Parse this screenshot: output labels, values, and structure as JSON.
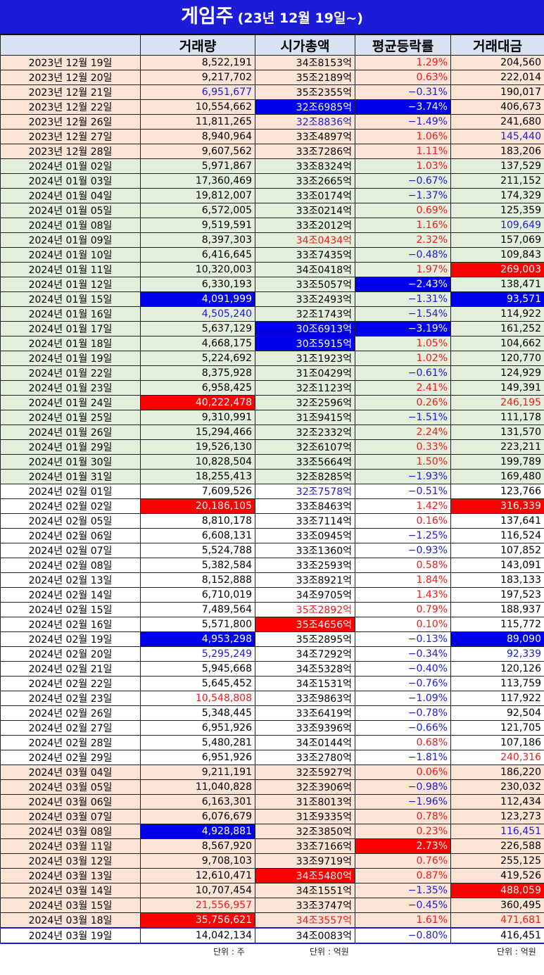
{
  "title": "게임주",
  "subtitle": "(23년 12월 19일~)",
  "columns": [
    "",
    "거래량",
    "시가총액",
    "평균등락률",
    "거래대금"
  ],
  "rows": [
    {
      "d": "2023년 12월 19일",
      "v": "8,522,191",
      "m": "34조8153억",
      "r": "1.29%",
      "a": "204,560",
      "bg": "peach",
      "rc": "red"
    },
    {
      "d": "2023년 12월 20일",
      "v": "9,217,702",
      "m": "35조2189억",
      "r": "0.63%",
      "a": "222,014",
      "bg": "peach",
      "rc": "red"
    },
    {
      "d": "2023년 12월 21일",
      "v": "6,951,677",
      "m": "35조2355억",
      "r": "-0.31%",
      "a": "190,017",
      "bg": "peach",
      "vc": "blue",
      "rc": "blue"
    },
    {
      "d": "2023년 12월 22일",
      "v": "10,554,662",
      "m": "32조6985억",
      "r": "-3.74%",
      "a": "406,673",
      "bg": "peach",
      "mc": "bgblue",
      "rc": "bgblue"
    },
    {
      "d": "2023년 12월 26일",
      "v": "11,811,265",
      "m": "32조8836억",
      "r": "-1.49%",
      "a": "241,680",
      "bg": "peach",
      "mc": "blue",
      "rc": "blue"
    },
    {
      "d": "2023년 12월 27일",
      "v": "8,940,964",
      "m": "33조4897억",
      "r": "1.06%",
      "a": "145,440",
      "bg": "peach",
      "rc": "red",
      "ac": "blue"
    },
    {
      "d": "2023년 12월 28일",
      "v": "9,607,562",
      "m": "33조7286억",
      "r": "1.11%",
      "a": "183,206",
      "bg": "peach",
      "rc": "red"
    },
    {
      "d": "2024년 01월 02일",
      "v": "5,971,867",
      "m": "33조8324억",
      "r": "1.03%",
      "a": "137,529",
      "bg": "green",
      "rc": "red"
    },
    {
      "d": "2024년 01월 03일",
      "v": "17,360,469",
      "m": "33조2665억",
      "r": "-0.67%",
      "a": "211,152",
      "bg": "green",
      "rc": "blue"
    },
    {
      "d": "2024년 01월 04일",
      "v": "19,812,007",
      "m": "33조0174억",
      "r": "-1.37%",
      "a": "174,329",
      "bg": "green",
      "rc": "blue"
    },
    {
      "d": "2024년 01월 05일",
      "v": "6,572,005",
      "m": "33조0214억",
      "r": "0.69%",
      "a": "125,359",
      "bg": "green",
      "rc": "red"
    },
    {
      "d": "2024년 01월 08일",
      "v": "9,519,591",
      "m": "33조2012억",
      "r": "1.16%",
      "a": "109,649",
      "bg": "green",
      "rc": "red",
      "ac": "blue"
    },
    {
      "d": "2024년 01월 09일",
      "v": "8,397,303",
      "m": "34조0434억",
      "r": "2.32%",
      "a": "157,069",
      "bg": "green",
      "mc": "red",
      "rc": "red"
    },
    {
      "d": "2024년 01월 10일",
      "v": "6,416,645",
      "m": "33조7435억",
      "r": "-0.48%",
      "a": "109,843",
      "bg": "green",
      "rc": "blue"
    },
    {
      "d": "2024년 01월 11일",
      "v": "10,320,003",
      "m": "34조0418억",
      "r": "1.97%",
      "a": "269,003",
      "bg": "green",
      "rc": "red",
      "ac": "bgred"
    },
    {
      "d": "2024년 01월 12일",
      "v": "6,330,193",
      "m": "33조5057억",
      "r": "-2.43%",
      "a": "138,471",
      "bg": "green",
      "rc": "bgblue"
    },
    {
      "d": "2024년 01월 15일",
      "v": "4,091,999",
      "m": "33조2493억",
      "r": "-1.31%",
      "a": "93,571",
      "bg": "green",
      "vc": "bgblue",
      "rc": "blue",
      "ac": "bgblue"
    },
    {
      "d": "2024년 01월 16일",
      "v": "4,505,240",
      "m": "32조1743억",
      "r": "-1.54%",
      "a": "114,922",
      "bg": "green",
      "vc": "blue",
      "rc": "blue"
    },
    {
      "d": "2024년 01월 17일",
      "v": "5,637,129",
      "m": "30조6913억",
      "r": "-3.19%",
      "a": "161,252",
      "bg": "green",
      "mc": "bgblue",
      "rc": "bgblue"
    },
    {
      "d": "2024년 01월 18일",
      "v": "4,668,175",
      "m": "30조5915억",
      "r": "1.05%",
      "a": "104,662",
      "bg": "green",
      "mc": "bgblue",
      "rc": "red"
    },
    {
      "d": "2024년 01월 19일",
      "v": "5,224,692",
      "m": "31조1923억",
      "r": "1.02%",
      "a": "120,770",
      "bg": "green",
      "rc": "red"
    },
    {
      "d": "2024년 01월 22일",
      "v": "8,375,928",
      "m": "31조0429억",
      "r": "-0.61%",
      "a": "124,929",
      "bg": "green",
      "rc": "blue"
    },
    {
      "d": "2024년 01월 23일",
      "v": "6,958,425",
      "m": "32조1123억",
      "r": "2.41%",
      "a": "149,391",
      "bg": "green",
      "rc": "red"
    },
    {
      "d": "2024년 01월 24일",
      "v": "40,222,478",
      "m": "32조2596억",
      "r": "0.26%",
      "a": "246,195",
      "bg": "green",
      "vc": "bgred",
      "rc": "red",
      "ac": "red"
    },
    {
      "d": "2024년 01월 25일",
      "v": "9,310,991",
      "m": "31조9415억",
      "r": "-1.51%",
      "a": "111,178",
      "bg": "green",
      "rc": "blue"
    },
    {
      "d": "2024년 01월 26일",
      "v": "15,294,466",
      "m": "32조2332억",
      "r": "2.24%",
      "a": "131,570",
      "bg": "green",
      "rc": "red"
    },
    {
      "d": "2024년 01월 29일",
      "v": "19,526,130",
      "m": "32조6107억",
      "r": "0.33%",
      "a": "223,211",
      "bg": "green",
      "rc": "red"
    },
    {
      "d": "2024년 01월 30일",
      "v": "10,828,504",
      "m": "33조5664억",
      "r": "1.50%",
      "a": "199,789",
      "bg": "green",
      "rc": "red"
    },
    {
      "d": "2024년 01월 31일",
      "v": "18,255,413",
      "m": "32조8285억",
      "r": "-1.93%",
      "a": "169,480",
      "bg": "green",
      "rc": "blue"
    },
    {
      "d": "2024년 02월 01일",
      "v": "7,609,526",
      "m": "32조7578억",
      "r": "-0.51%",
      "a": "123,766",
      "bg": "white",
      "mc": "blue",
      "rc": "blue"
    },
    {
      "d": "2024년 02월 02일",
      "v": "20,186,105",
      "m": "33조8463억",
      "r": "1.42%",
      "a": "316,339",
      "bg": "white",
      "vc": "bgred",
      "rc": "red",
      "ac": "bgred"
    },
    {
      "d": "2024년 02월 05일",
      "v": "8,810,178",
      "m": "33조7114억",
      "r": "0.16%",
      "a": "137,641",
      "bg": "white",
      "rc": "red"
    },
    {
      "d": "2024년 02월 06일",
      "v": "6,608,131",
      "m": "33조0945억",
      "r": "-1.25%",
      "a": "116,524",
      "bg": "white",
      "rc": "blue"
    },
    {
      "d": "2024년 02월 07일",
      "v": "5,524,788",
      "m": "33조1360억",
      "r": "-0.93%",
      "a": "107,852",
      "bg": "white",
      "rc": "blue"
    },
    {
      "d": "2024년 02월 08일",
      "v": "5,382,584",
      "m": "33조2593억",
      "r": "0.58%",
      "a": "143,091",
      "bg": "white",
      "rc": "red"
    },
    {
      "d": "2024년 02월 13일",
      "v": "8,152,888",
      "m": "33조8921억",
      "r": "1.84%",
      "a": "183,133",
      "bg": "white",
      "rc": "red"
    },
    {
      "d": "2024년 02월 14일",
      "v": "6,710,019",
      "m": "34조9705억",
      "r": "1.43%",
      "a": "197,523",
      "bg": "white",
      "rc": "red"
    },
    {
      "d": "2024년 02월 15일",
      "v": "7,489,564",
      "m": "35조2892억",
      "r": "0.79%",
      "a": "188,937",
      "bg": "white",
      "mc": "red",
      "rc": "red"
    },
    {
      "d": "2024년 02월 16일",
      "v": "5,571,800",
      "m": "35조4656억",
      "r": "0.10%",
      "a": "115,772",
      "bg": "white",
      "mc": "bgred",
      "rc": "red"
    },
    {
      "d": "2024년 02월 19일",
      "v": "4,953,298",
      "m": "35조2895억",
      "r": "-0.13%",
      "a": "89,090",
      "bg": "white",
      "vc": "bgblue",
      "rc": "blue",
      "ac": "bgblue"
    },
    {
      "d": "2024년 02월 20일",
      "v": "5,295,249",
      "m": "34조7292억",
      "r": "-0.34%",
      "a": "92,339",
      "bg": "white",
      "vc": "blue",
      "rc": "blue",
      "ac": "blue"
    },
    {
      "d": "2024년 02월 21일",
      "v": "5,945,668",
      "m": "34조5328억",
      "r": "-0.40%",
      "a": "120,126",
      "bg": "white",
      "rc": "blue"
    },
    {
      "d": "2024년 02월 22일",
      "v": "5,645,452",
      "m": "34조1531억",
      "r": "-0.76%",
      "a": "113,759",
      "bg": "white",
      "rc": "blue"
    },
    {
      "d": "2024년 02월 23일",
      "v": "10,548,808",
      "m": "33조9863억",
      "r": "-1.09%",
      "a": "117,922",
      "bg": "white",
      "vc": "red",
      "rc": "blue"
    },
    {
      "d": "2024년 02월 26일",
      "v": "5,348,445",
      "m": "33조6419억",
      "r": "-0.78%",
      "a": "92,504",
      "bg": "white",
      "rc": "blue"
    },
    {
      "d": "2024년 02월 27일",
      "v": "6,951,926",
      "m": "33조9396억",
      "r": "-0.66%",
      "a": "121,705",
      "bg": "white",
      "rc": "blue"
    },
    {
      "d": "2024년 02월 28일",
      "v": "5,480,281",
      "m": "34조0144억",
      "r": "0.68%",
      "a": "107,186",
      "bg": "white",
      "rc": "red"
    },
    {
      "d": "2024년 02월 29일",
      "v": "6,951,926",
      "m": "33조2780억",
      "r": "-1.81%",
      "a": "240,316",
      "bg": "white",
      "rc": "blue",
      "ac": "red"
    },
    {
      "d": "2024년 03월 04일",
      "v": "9,211,191",
      "m": "32조5927억",
      "r": "0.06%",
      "a": "186,220",
      "bg": "peach",
      "rc": "red"
    },
    {
      "d": "2024년 03월 05일",
      "v": "11,040,828",
      "m": "32조3906억",
      "r": "-0.98%",
      "a": "230,032",
      "bg": "peach",
      "rc": "blue"
    },
    {
      "d": "2024년 03월 06일",
      "v": "6,163,301",
      "m": "31조8013억",
      "r": "-1.96%",
      "a": "112,434",
      "bg": "peach",
      "rc": "blue"
    },
    {
      "d": "2024년 03월 07일",
      "v": "6,076,679",
      "m": "31조9335억",
      "r": "0.78%",
      "a": "123,273",
      "bg": "peach",
      "rc": "red"
    },
    {
      "d": "2024년 03월 08일",
      "v": "4,928,881",
      "m": "32조3850억",
      "r": "0.23%",
      "a": "116,451",
      "bg": "peach",
      "vc": "bgblue",
      "rc": "red",
      "ac": "blue"
    },
    {
      "d": "2024년 03월 11일",
      "v": "8,567,920",
      "m": "33조7166억",
      "r": "2.73%",
      "a": "226,588",
      "bg": "peach",
      "rc": "bgred"
    },
    {
      "d": "2024년 03월 12일",
      "v": "9,708,103",
      "m": "33조9719억",
      "r": "0.76%",
      "a": "255,125",
      "bg": "peach",
      "rc": "red"
    },
    {
      "d": "2024년 03월 13일",
      "v": "12,610,471",
      "m": "34조5480억",
      "r": "0.87%",
      "a": "419,526",
      "bg": "peach",
      "mc": "bgred",
      "rc": "red"
    },
    {
      "d": "2024년 03월 14일",
      "v": "10,707,454",
      "m": "34조1551억",
      "r": "-1.35%",
      "a": "488,059",
      "bg": "peach",
      "rc": "blue",
      "ac": "bgred"
    },
    {
      "d": "2024년 03월 15일",
      "v": "21,556,957",
      "m": "33조3747억",
      "r": "-0.45%",
      "a": "360,495",
      "bg": "peach",
      "vc": "red",
      "rc": "blue"
    },
    {
      "d": "2024년 03월 18일",
      "v": "35,756,621",
      "m": "34조3557억",
      "r": "1.61%",
      "a": "471,681",
      "bg": "peach",
      "vc": "bgred",
      "mc": "red",
      "rc": "red",
      "ac": "red"
    },
    {
      "d": "2024년 03월 19일",
      "v": "14,042,134",
      "m": "34조0083억",
      "r": "-0.80%",
      "a": "416,451",
      "bg": "white",
      "last": true,
      "rc": "blue"
    }
  ],
  "footer": {
    "volume_unit": "단위 : 주",
    "cap_unit": "단위 : 억원",
    "amount_unit": "단위 : 억원"
  }
}
